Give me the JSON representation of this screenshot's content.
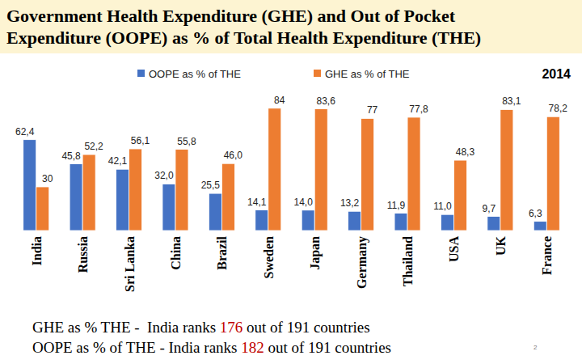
{
  "chart_data": {
    "type": "bar",
    "title": "Government Health Expenditure (GHE) and Out of Pocket\nExpenditure (OOPE) as % of Total Health Expenditure (THE)",
    "annotations": [
      "2014"
    ],
    "categories": [
      "India",
      "Russia",
      "Sri Lanka",
      "China",
      "Brazil",
      "Sweden",
      "Japan",
      "Germany",
      "Thailand",
      "USA",
      "UK",
      "France"
    ],
    "series": [
      {
        "name": "OOPE as % of THE",
        "color": "#4472c4",
        "values": [
          62.4,
          45.8,
          42.1,
          32.0,
          25.5,
          14.1,
          14.0,
          13.2,
          11.9,
          11.0,
          9.7,
          6.3
        ],
        "value_labels": [
          "62,4",
          "45,8",
          "42,1",
          "32,0",
          "25,5",
          "14,1",
          "14,0",
          "13,2",
          "11,9",
          "11,0",
          "9,7",
          "6,3"
        ]
      },
      {
        "name": "GHE as % of THE",
        "color": "#ed7d31",
        "values": [
          30,
          52.2,
          56.1,
          55.8,
          46.0,
          84,
          83.6,
          77,
          77.8,
          48.3,
          83.1,
          78.2
        ],
        "value_labels": [
          "30",
          "52,2",
          "56,1",
          "55,8",
          "46,0",
          "84",
          "83,6",
          "77",
          "77,8",
          "48,3",
          "83,1",
          "78,2"
        ]
      }
    ],
    "ylim": [
      0,
      90
    ],
    "grid": false,
    "legend": "top",
    "data_labels": true,
    "tick_labels": "x",
    "notes": [
      {
        "prefix": "GHE as % THE -  India ranks ",
        "rank": "176",
        "suffix": " out of 191 countries"
      },
      {
        "prefix": "OOPE as % of THE - India ranks ",
        "rank": "182",
        "suffix": " out of 191 countries"
      }
    ],
    "page_number": "2"
  }
}
